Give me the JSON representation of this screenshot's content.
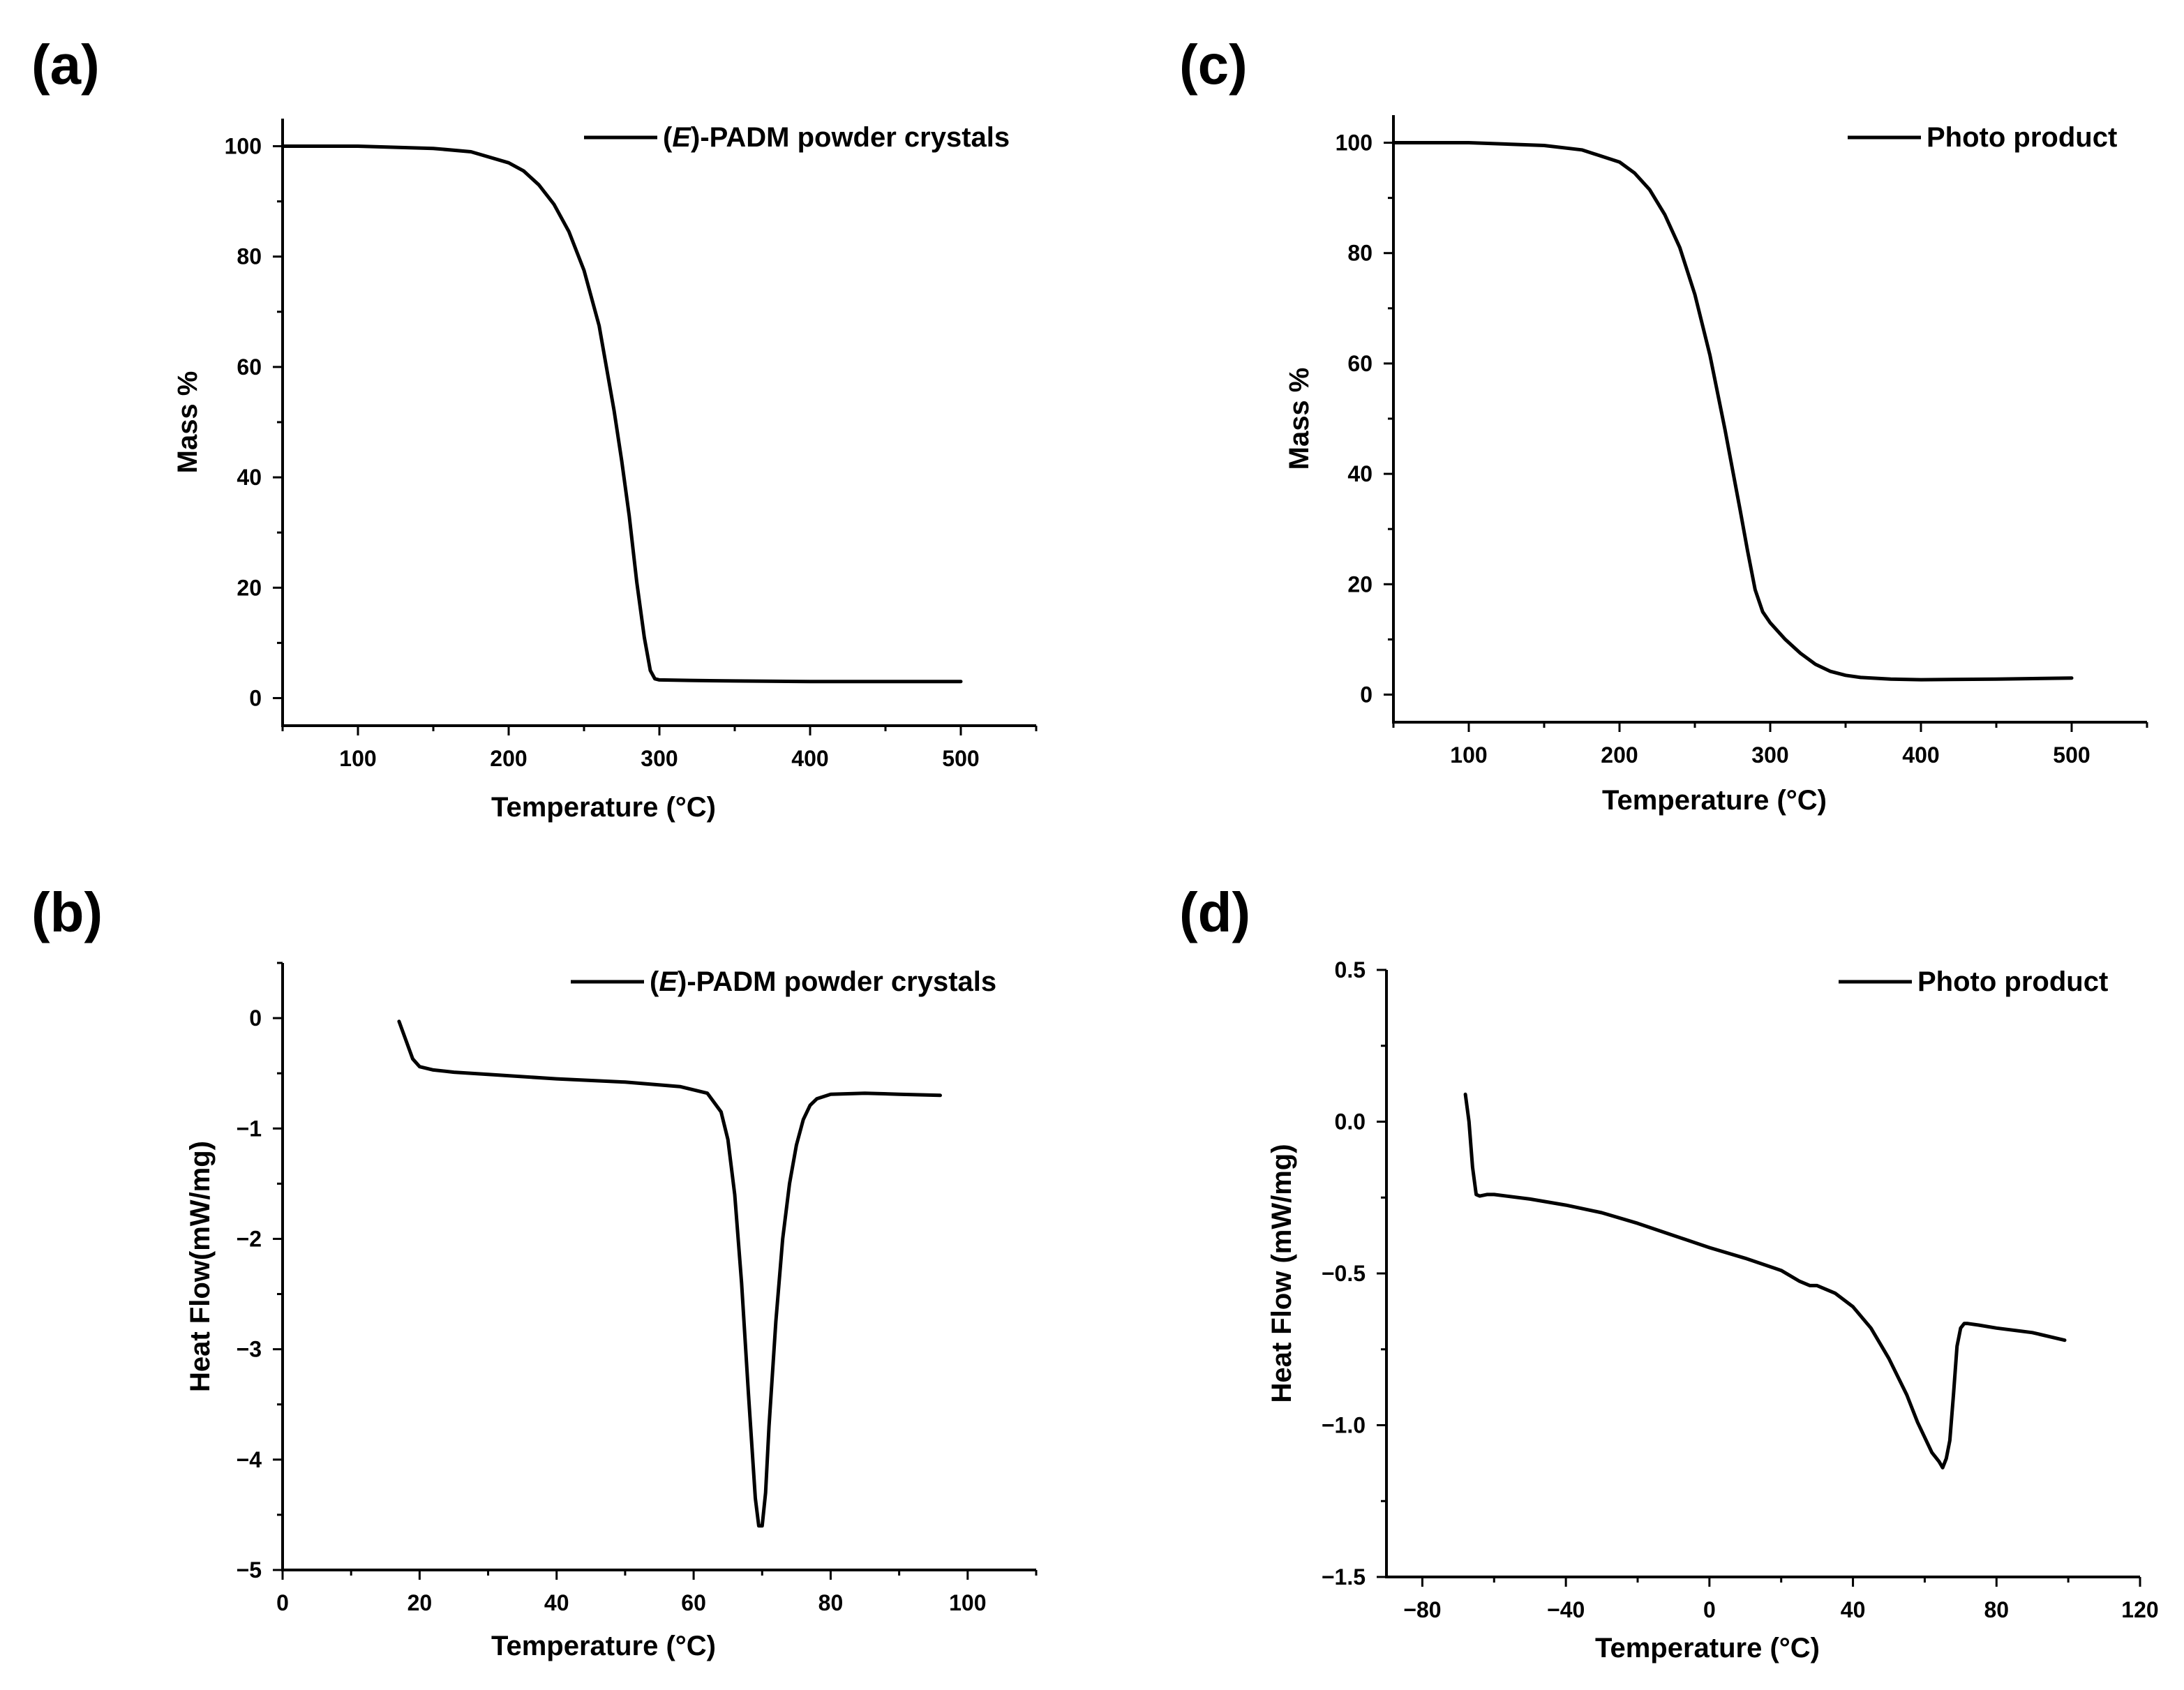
{
  "chart_data": [
    {
      "panel_label": "(a)",
      "type": "line",
      "title": "",
      "xlabel": "Temperature (°C)",
      "ylabel": "Mass %",
      "xlim": [
        50,
        550
      ],
      "ylim": [
        -5,
        105
      ],
      "xticks": [
        100,
        200,
        300,
        400,
        500
      ],
      "xtick_labels": [
        "100",
        "200",
        "300",
        "400",
        "500"
      ],
      "yticks": [
        0,
        20,
        40,
        60,
        80,
        100
      ],
      "ytick_labels": [
        "0",
        "20",
        "40",
        "60",
        "80",
        "100"
      ],
      "legend": {
        "entries": [
          {
            "prefix": "(",
            "italic": "E",
            "suffix": ")-PADM powder crystals"
          }
        ],
        "position": "top-right"
      },
      "series": [
        {
          "name": "(E)-PADM powder crystals",
          "x": [
            50,
            100,
            150,
            175,
            200,
            210,
            220,
            230,
            240,
            250,
            260,
            270,
            275,
            280,
            285,
            290,
            294,
            297,
            300,
            320,
            350,
            400,
            450,
            500
          ],
          "y": [
            100,
            100,
            99.6,
            99.0,
            97.0,
            95.5,
            93.0,
            89.5,
            84.5,
            77.5,
            67.5,
            52.0,
            43.0,
            33.0,
            21.0,
            11.0,
            5.0,
            3.5,
            3.3,
            3.2,
            3.1,
            3.0,
            3.0,
            3.0
          ]
        }
      ]
    },
    {
      "panel_label": "(b)",
      "type": "line",
      "title": "",
      "xlabel": "Temperature (°C)",
      "ylabel": "Heat Flow(mW/mg)",
      "xlim": [
        0,
        110
      ],
      "ylim": [
        -5,
        0.5
      ],
      "xticks": [
        0,
        20,
        40,
        60,
        80,
        100
      ],
      "xtick_labels": [
        "0",
        "20",
        "40",
        "60",
        "80",
        "100"
      ],
      "yticks": [
        -5,
        -4,
        -3,
        -2,
        -1,
        0
      ],
      "ytick_labels": [
        "−5",
        "−4",
        "−3",
        "−2",
        "−1",
        "0"
      ],
      "legend": {
        "entries": [
          {
            "prefix": "(",
            "italic": "E",
            "suffix": ")-PADM powder crystals"
          }
        ],
        "position": "top-right"
      },
      "series": [
        {
          "name": "(E)-PADM powder crystals",
          "x": [
            17,
            18,
            19,
            20,
            22,
            25,
            30,
            40,
            50,
            58,
            62,
            64,
            65,
            66,
            67,
            68,
            69,
            69.5,
            70,
            70.5,
            71,
            72,
            73,
            74,
            75,
            76,
            77,
            78,
            80,
            85,
            90,
            96
          ],
          "y": [
            -0.03,
            -0.2,
            -0.37,
            -0.44,
            -0.47,
            -0.49,
            -0.51,
            -0.55,
            -0.58,
            -0.62,
            -0.68,
            -0.85,
            -1.1,
            -1.6,
            -2.4,
            -3.4,
            -4.35,
            -4.6,
            -4.6,
            -4.3,
            -3.7,
            -2.75,
            -2.0,
            -1.5,
            -1.15,
            -0.92,
            -0.79,
            -0.73,
            -0.69,
            -0.68,
            -0.69,
            -0.7
          ]
        }
      ]
    },
    {
      "panel_label": "(c)",
      "type": "line",
      "title": "",
      "xlabel": "Temperature (°C)",
      "ylabel": "Mass %",
      "xlim": [
        50,
        550
      ],
      "ylim": [
        -5,
        105
      ],
      "xticks": [
        100,
        200,
        300,
        400,
        500
      ],
      "xtick_labels": [
        "100",
        "200",
        "300",
        "400",
        "500"
      ],
      "yticks": [
        0,
        20,
        40,
        60,
        80,
        100
      ],
      "ytick_labels": [
        "0",
        "20",
        "40",
        "60",
        "80",
        "100"
      ],
      "legend": {
        "entries": [
          {
            "prefix": "",
            "italic": "",
            "suffix": "Photo product"
          }
        ],
        "position": "top-right"
      },
      "series": [
        {
          "name": "Photo product",
          "x": [
            50,
            100,
            150,
            175,
            200,
            210,
            220,
            230,
            240,
            250,
            260,
            270,
            280,
            285,
            290,
            295,
            300,
            310,
            320,
            330,
            340,
            350,
            360,
            380,
            400,
            450,
            500
          ],
          "y": [
            100,
            100,
            99.5,
            98.7,
            96.5,
            94.5,
            91.5,
            87.0,
            81.0,
            72.5,
            61.5,
            48.0,
            33.5,
            26.0,
            19.0,
            15.0,
            13.0,
            10.0,
            7.5,
            5.5,
            4.2,
            3.5,
            3.1,
            2.8,
            2.7,
            2.8,
            3.0
          ]
        }
      ]
    },
    {
      "panel_label": "(d)",
      "type": "line",
      "title": "",
      "xlabel": "Temperature (°C)",
      "ylabel": "Heat Flow (mW/mg)",
      "xlim": [
        -90,
        120
      ],
      "ylim": [
        -1.5,
        0.5
      ],
      "xticks": [
        -80,
        -40,
        0,
        40,
        80,
        120
      ],
      "xtick_labels": [
        "−80",
        "−40",
        "0",
        "40",
        "80",
        "120"
      ],
      "yticks": [
        -1.5,
        -1.0,
        -0.5,
        0.0,
        0.5
      ],
      "ytick_labels": [
        "−1.5",
        "−1.0",
        "−0.5",
        "0.0",
        "0.5"
      ],
      "legend": {
        "entries": [
          {
            "prefix": "",
            "italic": "",
            "suffix": "Photo product"
          }
        ],
        "position": "top-right"
      },
      "series": [
        {
          "name": "Photo product",
          "x": [
            -68,
            -67,
            -66,
            -65,
            -64,
            -62,
            -60,
            -50,
            -40,
            -30,
            -20,
            -10,
            0,
            10,
            20,
            25,
            28,
            30,
            35,
            40,
            45,
            50,
            55,
            58,
            60,
            62,
            64,
            65,
            66,
            67,
            68,
            69,
            70,
            71,
            72,
            75,
            80,
            90,
            99
          ],
          "y": [
            0.09,
            0.0,
            -0.15,
            -0.24,
            -0.245,
            -0.24,
            -0.24,
            -0.255,
            -0.275,
            -0.3,
            -0.335,
            -0.375,
            -0.415,
            -0.45,
            -0.49,
            -0.525,
            -0.54,
            -0.54,
            -0.565,
            -0.61,
            -0.68,
            -0.78,
            -0.9,
            -0.99,
            -1.04,
            -1.09,
            -1.12,
            -1.14,
            -1.11,
            -1.05,
            -0.9,
            -0.74,
            -0.68,
            -0.665,
            -0.665,
            -0.67,
            -0.68,
            -0.695,
            -0.72
          ]
        }
      ]
    }
  ]
}
